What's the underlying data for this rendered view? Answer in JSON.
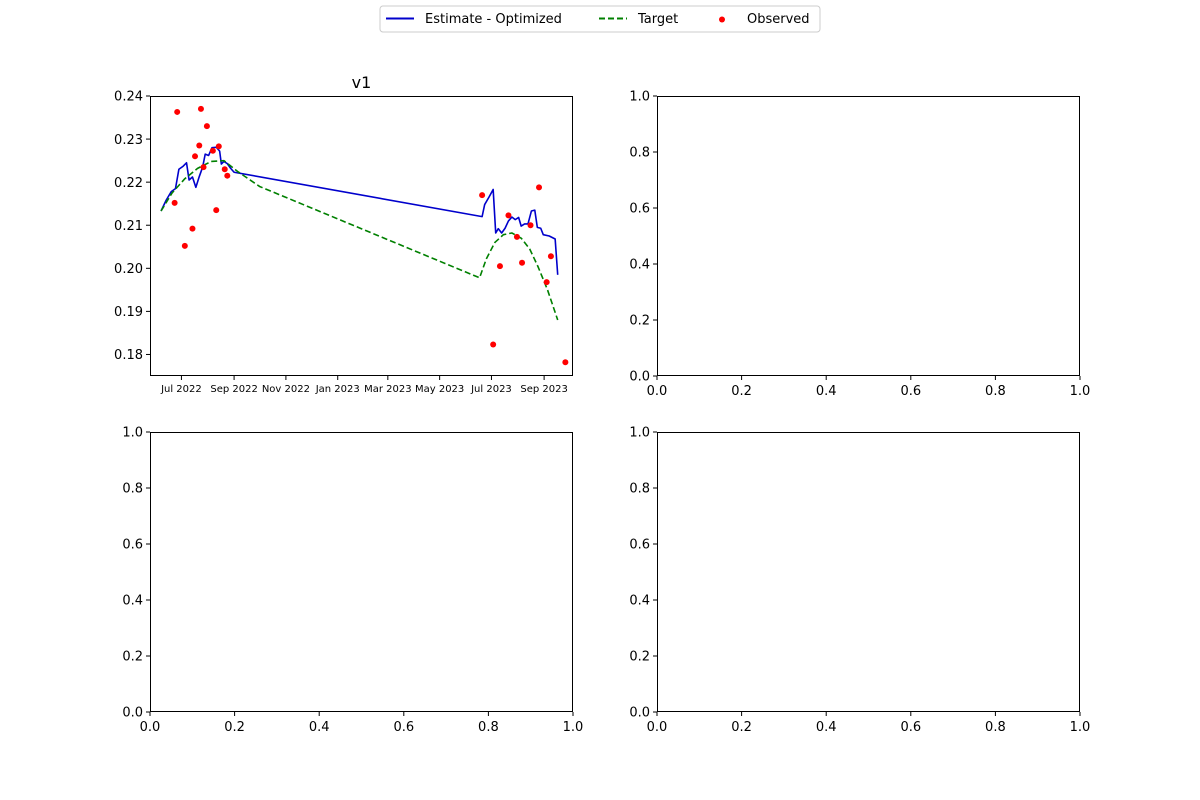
{
  "legend": [
    {
      "label": "Estimate - Optimized",
      "color": "#0000cc",
      "style": "solid-line"
    },
    {
      "label": "Target",
      "color": "#008000",
      "style": "dashed-line"
    },
    {
      "label": "Observed",
      "color": "#ff0000",
      "style": "dot"
    }
  ],
  "chart_data": [
    {
      "type": "line",
      "title": "v1",
      "x_type": "date",
      "xlim": [
        "2022-05-25",
        "2023-10-05"
      ],
      "ylim": [
        0.175,
        0.24
      ],
      "x_ticks": [
        {
          "value": "2022-07-01",
          "label": "Jul 2022"
        },
        {
          "value": "2022-09-01",
          "label": "Sep 2022"
        },
        {
          "value": "2022-11-01",
          "label": "Nov 2022"
        },
        {
          "value": "2023-01-01",
          "label": "Jan 2023"
        },
        {
          "value": "2023-03-01",
          "label": "Mar 2023"
        },
        {
          "value": "2023-05-01",
          "label": "May 2023"
        },
        {
          "value": "2023-07-01",
          "label": "Jul 2023"
        },
        {
          "value": "2023-09-01",
          "label": "Sep 2023"
        }
      ],
      "y_ticks": [
        {
          "value": 0.18,
          "label": "0.18"
        },
        {
          "value": 0.19,
          "label": "0.19"
        },
        {
          "value": 0.2,
          "label": "0.20"
        },
        {
          "value": 0.21,
          "label": "0.21"
        },
        {
          "value": 0.22,
          "label": "0.22"
        },
        {
          "value": 0.23,
          "label": "0.23"
        },
        {
          "value": 0.24,
          "label": "0.24"
        }
      ],
      "series": [
        {
          "name": "Estimate - Optimized",
          "color": "#0000cc",
          "style": "solid",
          "points": [
            [
              "2022-06-07",
              0.2133
            ],
            [
              "2022-06-13",
              0.2158
            ],
            [
              "2022-06-19",
              0.2178
            ],
            [
              "2022-06-24",
              0.2185
            ],
            [
              "2022-06-28",
              0.223
            ],
            [
              "2022-07-03",
              0.2237
            ],
            [
              "2022-07-07",
              0.2245
            ],
            [
              "2022-07-10",
              0.2205
            ],
            [
              "2022-07-14",
              0.2212
            ],
            [
              "2022-07-18",
              0.2188
            ],
            [
              "2022-07-22",
              0.2213
            ],
            [
              "2022-07-26",
              0.2235
            ],
            [
              "2022-07-29",
              0.2265
            ],
            [
              "2022-08-02",
              0.2262
            ],
            [
              "2022-08-06",
              0.228
            ],
            [
              "2022-08-11",
              0.2281
            ],
            [
              "2022-08-15",
              0.2272
            ],
            [
              "2022-08-17",
              0.2242
            ],
            [
              "2022-08-20",
              0.2248
            ],
            [
              "2022-08-24",
              0.2243
            ],
            [
              "2022-08-28",
              0.2232
            ],
            [
              "2022-09-01",
              0.2223
            ],
            [
              "2023-06-20",
              0.212
            ],
            [
              "2023-06-23",
              0.2148
            ],
            [
              "2023-06-28",
              0.2165
            ],
            [
              "2023-07-03",
              0.2183
            ],
            [
              "2023-07-06",
              0.2082
            ],
            [
              "2023-07-09",
              0.2092
            ],
            [
              "2023-07-13",
              0.2082
            ],
            [
              "2023-07-17",
              0.2093
            ],
            [
              "2023-07-21",
              0.211
            ],
            [
              "2023-07-25",
              0.2119
            ],
            [
              "2023-07-29",
              0.2113
            ],
            [
              "2023-08-02",
              0.2118
            ],
            [
              "2023-08-05",
              0.2098
            ],
            [
              "2023-08-09",
              0.2103
            ],
            [
              "2023-08-13",
              0.2103
            ],
            [
              "2023-08-17",
              0.2133
            ],
            [
              "2023-08-21",
              0.2135
            ],
            [
              "2023-08-24",
              0.2095
            ],
            [
              "2023-08-28",
              0.2093
            ],
            [
              "2023-08-31",
              0.2078
            ],
            [
              "2023-09-07",
              0.2075
            ],
            [
              "2023-09-14",
              0.2068
            ],
            [
              "2023-09-17",
              0.1985
            ]
          ]
        },
        {
          "name": "Target",
          "color": "#008000",
          "style": "dashed",
          "points": [
            [
              "2022-06-07",
              0.2133
            ],
            [
              "2022-06-20",
              0.2175
            ],
            [
              "2022-07-05",
              0.2208
            ],
            [
              "2022-07-20",
              0.2232
            ],
            [
              "2022-08-05",
              0.2248
            ],
            [
              "2022-08-20",
              0.225
            ],
            [
              "2022-09-05",
              0.2225
            ],
            [
              "2022-10-01",
              0.219
            ],
            [
              "2023-06-17",
              0.1978
            ],
            [
              "2023-06-25",
              0.2022
            ],
            [
              "2023-07-05",
              0.206
            ],
            [
              "2023-07-15",
              0.2078
            ],
            [
              "2023-07-25",
              0.2082
            ],
            [
              "2023-08-05",
              0.207
            ],
            [
              "2023-08-15",
              0.2045
            ],
            [
              "2023-08-25",
              0.2003
            ],
            [
              "2023-09-05",
              0.195
            ],
            [
              "2023-09-17",
              0.188
            ]
          ]
        },
        {
          "name": "Observed",
          "color": "#ff0000",
          "style": "points",
          "points": [
            [
              "2022-06-23",
              0.2152
            ],
            [
              "2022-06-26",
              0.2363
            ],
            [
              "2022-07-05",
              0.2052
            ],
            [
              "2022-07-14",
              0.2092
            ],
            [
              "2022-07-17",
              0.226
            ],
            [
              "2022-07-22",
              0.2285
            ],
            [
              "2022-07-24",
              0.237
            ],
            [
              "2022-07-27",
              0.2235
            ],
            [
              "2022-07-31",
              0.233
            ],
            [
              "2022-08-07",
              0.2273
            ],
            [
              "2022-08-11",
              0.2135
            ],
            [
              "2022-08-14",
              0.2283
            ],
            [
              "2022-08-21",
              0.223
            ],
            [
              "2022-08-24",
              0.2215
            ],
            [
              "2023-06-20",
              0.217
            ],
            [
              "2023-07-03",
              0.1823
            ],
            [
              "2023-07-11",
              0.2005
            ],
            [
              "2023-07-21",
              0.2123
            ],
            [
              "2023-07-31",
              0.2073
            ],
            [
              "2023-08-06",
              0.2013
            ],
            [
              "2023-08-16",
              0.21
            ],
            [
              "2023-08-26",
              0.2188
            ],
            [
              "2023-09-04",
              0.1968
            ],
            [
              "2023-09-09",
              0.2028
            ],
            [
              "2023-09-26",
              0.1782
            ]
          ]
        }
      ]
    },
    {
      "type": "line",
      "title": "",
      "xlim": [
        0,
        1
      ],
      "ylim": [
        0,
        1
      ],
      "x_ticks": [
        {
          "value": 0.0,
          "label": "0.0"
        },
        {
          "value": 0.2,
          "label": "0.2"
        },
        {
          "value": 0.4,
          "label": "0.4"
        },
        {
          "value": 0.6,
          "label": "0.6"
        },
        {
          "value": 0.8,
          "label": "0.8"
        },
        {
          "value": 1.0,
          "label": "1.0"
        }
      ],
      "y_ticks": [
        {
          "value": 0.0,
          "label": "0.0"
        },
        {
          "value": 0.2,
          "label": "0.2"
        },
        {
          "value": 0.4,
          "label": "0.4"
        },
        {
          "value": 0.6,
          "label": "0.6"
        },
        {
          "value": 0.8,
          "label": "0.8"
        },
        {
          "value": 1.0,
          "label": "1.0"
        }
      ],
      "series": []
    },
    {
      "type": "line",
      "title": "",
      "xlim": [
        0,
        1
      ],
      "ylim": [
        0,
        1
      ],
      "x_ticks": [
        {
          "value": 0.0,
          "label": "0.0"
        },
        {
          "value": 0.2,
          "label": "0.2"
        },
        {
          "value": 0.4,
          "label": "0.4"
        },
        {
          "value": 0.6,
          "label": "0.6"
        },
        {
          "value": 0.8,
          "label": "0.8"
        },
        {
          "value": 1.0,
          "label": "1.0"
        }
      ],
      "y_ticks": [
        {
          "value": 0.0,
          "label": "0.0"
        },
        {
          "value": 0.2,
          "label": "0.2"
        },
        {
          "value": 0.4,
          "label": "0.4"
        },
        {
          "value": 0.6,
          "label": "0.6"
        },
        {
          "value": 0.8,
          "label": "0.8"
        },
        {
          "value": 1.0,
          "label": "1.0"
        }
      ],
      "series": []
    },
    {
      "type": "line",
      "title": "",
      "xlim": [
        0,
        1
      ],
      "ylim": [
        0,
        1
      ],
      "x_ticks": [
        {
          "value": 0.0,
          "label": "0.0"
        },
        {
          "value": 0.2,
          "label": "0.2"
        },
        {
          "value": 0.4,
          "label": "0.4"
        },
        {
          "value": 0.6,
          "label": "0.6"
        },
        {
          "value": 0.8,
          "label": "0.8"
        },
        {
          "value": 1.0,
          "label": "1.0"
        }
      ],
      "y_ticks": [
        {
          "value": 0.0,
          "label": "0.0"
        },
        {
          "value": 0.2,
          "label": "0.2"
        },
        {
          "value": 0.4,
          "label": "0.4"
        },
        {
          "value": 0.6,
          "label": "0.6"
        },
        {
          "value": 0.8,
          "label": "0.8"
        },
        {
          "value": 1.0,
          "label": "1.0"
        }
      ],
      "series": []
    }
  ]
}
